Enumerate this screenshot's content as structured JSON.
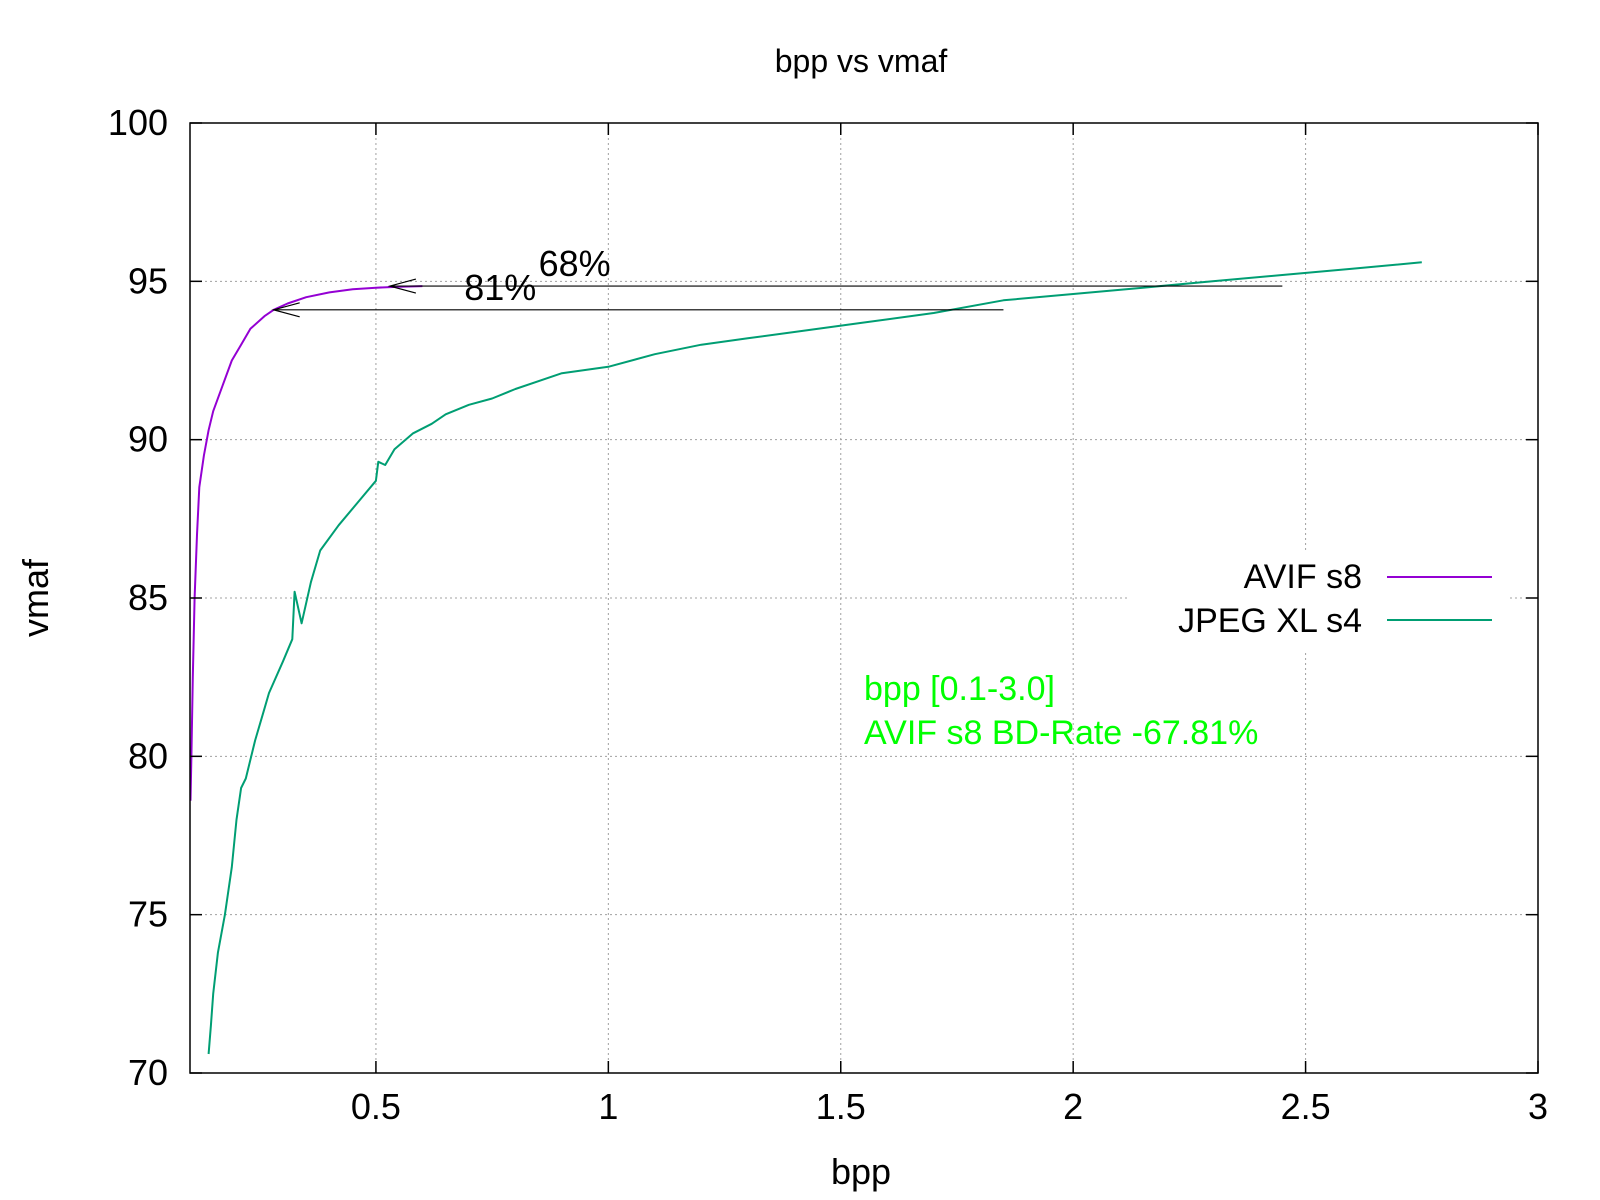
{
  "chart_data": {
    "type": "line",
    "title": "bpp vs vmaf",
    "xlabel": "bpp",
    "ylabel": "vmaf",
    "xlim": [
      0.1,
      3.0
    ],
    "ylim": [
      70,
      100
    ],
    "xticks": [
      0.5,
      1,
      1.5,
      2,
      2.5,
      3
    ],
    "xtick_labels": [
      "0.5",
      "1",
      "1.5",
      "2",
      "2.5",
      "3"
    ],
    "yticks": [
      70,
      75,
      80,
      85,
      90,
      95,
      100
    ],
    "ytick_labels": [
      "70",
      "75",
      "80",
      "85",
      "90",
      "95",
      "100"
    ],
    "grid": true,
    "legend_position": "right",
    "series": [
      {
        "name": "AVIF s8",
        "color": "#9400d3",
        "points": [
          [
            0.101,
            78.6
          ],
          [
            0.103,
            80.0
          ],
          [
            0.106,
            82.5
          ],
          [
            0.11,
            85.0
          ],
          [
            0.115,
            87.0
          ],
          [
            0.12,
            88.5
          ],
          [
            0.13,
            89.5
          ],
          [
            0.14,
            90.3
          ],
          [
            0.15,
            90.9
          ],
          [
            0.17,
            91.7
          ],
          [
            0.19,
            92.5
          ],
          [
            0.21,
            93.0
          ],
          [
            0.23,
            93.5
          ],
          [
            0.26,
            93.9
          ],
          [
            0.28,
            94.1
          ],
          [
            0.31,
            94.3
          ],
          [
            0.35,
            94.5
          ],
          [
            0.4,
            94.65
          ],
          [
            0.45,
            94.75
          ],
          [
            0.5,
            94.8
          ],
          [
            0.55,
            94.83
          ],
          [
            0.6,
            94.85
          ]
        ]
      },
      {
        "name": "JPEG XL s4",
        "color": "#009e73",
        "points": [
          [
            0.14,
            70.6
          ],
          [
            0.145,
            71.5
          ],
          [
            0.15,
            72.5
          ],
          [
            0.16,
            73.8
          ],
          [
            0.175,
            75.0
          ],
          [
            0.19,
            76.5
          ],
          [
            0.2,
            78.0
          ],
          [
            0.21,
            79.0
          ],
          [
            0.22,
            79.3
          ],
          [
            0.24,
            80.5
          ],
          [
            0.26,
            81.5
          ],
          [
            0.27,
            82.0
          ],
          [
            0.3,
            83.0
          ],
          [
            0.32,
            83.7
          ],
          [
            0.325,
            85.2
          ],
          [
            0.34,
            84.2
          ],
          [
            0.36,
            85.5
          ],
          [
            0.38,
            86.5
          ],
          [
            0.42,
            87.3
          ],
          [
            0.46,
            88.0
          ],
          [
            0.5,
            88.7
          ],
          [
            0.505,
            89.3
          ],
          [
            0.52,
            89.2
          ],
          [
            0.54,
            89.7
          ],
          [
            0.58,
            90.2
          ],
          [
            0.62,
            90.5
          ],
          [
            0.65,
            90.8
          ],
          [
            0.7,
            91.1
          ],
          [
            0.75,
            91.3
          ],
          [
            0.8,
            91.6
          ],
          [
            0.9,
            92.1
          ],
          [
            1.0,
            92.3
          ],
          [
            1.1,
            92.7
          ],
          [
            1.2,
            93.0
          ],
          [
            1.3,
            93.2
          ],
          [
            1.4,
            93.4
          ],
          [
            1.55,
            93.7
          ],
          [
            1.7,
            94.0
          ],
          [
            1.85,
            94.4
          ],
          [
            2.0,
            94.6
          ],
          [
            2.15,
            94.8
          ],
          [
            2.3,
            95.0
          ],
          [
            2.45,
            95.2
          ],
          [
            2.6,
            95.4
          ],
          [
            2.75,
            95.6
          ]
        ]
      }
    ],
    "annotations": [
      {
        "text": "68%",
        "y": 94.85,
        "x_from": 2.45,
        "x_to": 0.53,
        "label_x": 0.85
      },
      {
        "text": "81%",
        "y": 94.1,
        "x_from": 1.85,
        "x_to": 0.28,
        "label_x": 0.69
      }
    ],
    "info": {
      "color": "#00ff00",
      "line1": "bpp [0.1-3.0]",
      "line2": "AVIF s8 BD-Rate -67.81%"
    }
  }
}
